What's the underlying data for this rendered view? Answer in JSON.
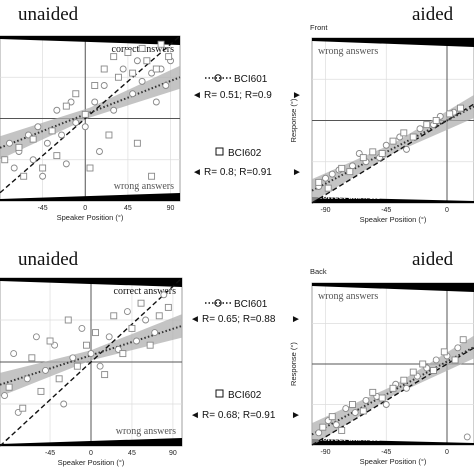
{
  "panel_titles": {
    "unaided": "unaided",
    "aided": "aided"
  },
  "row_labels": {
    "front": "Front",
    "back": "Back"
  },
  "region_labels": {
    "correct": "correct answers",
    "wrong": "wrong answers"
  },
  "legend": {
    "s1": {
      "name": "BCI601",
      "front_stats": "R= 0.51; R=0.9",
      "back_stats": "R= 0.65; R=0.88"
    },
    "s2": {
      "name": "BCI602",
      "front_stats": "R= 0.8; R=0.91",
      "back_stats": "R= 0.68; R=0.91"
    }
  },
  "colors": {
    "region_band": "#000000",
    "ci_band": "#b0b0b0",
    "fit_line": "#555555",
    "marker": "#888888"
  },
  "chart_data": [
    {
      "type": "scatter",
      "id": "front-unaided",
      "title": "unaided",
      "xlabel": "Speaker Position (°)",
      "ylabel": "",
      "xlim": [
        -90,
        100
      ],
      "ylim": [
        -100,
        100
      ],
      "xticks": [
        -45,
        0,
        45,
        90
      ],
      "grid": true,
      "diagonal": true,
      "fit": {
        "slope": 0.45,
        "intercept": 5
      },
      "series": [
        {
          "name": "BCI601",
          "marker": "circle",
          "points": [
            [
              -80,
              -30
            ],
            [
              -70,
              -40
            ],
            [
              -75,
              -60
            ],
            [
              -60,
              -20
            ],
            [
              -55,
              -50
            ],
            [
              -50,
              -10
            ],
            [
              -45,
              -70
            ],
            [
              -40,
              -30
            ],
            [
              -30,
              10
            ],
            [
              -25,
              -20
            ],
            [
              -20,
              -55
            ],
            [
              -15,
              20
            ],
            [
              -10,
              -5
            ],
            [
              0,
              -10
            ],
            [
              10,
              20
            ],
            [
              15,
              -40
            ],
            [
              20,
              40
            ],
            [
              30,
              10
            ],
            [
              40,
              60
            ],
            [
              50,
              30
            ],
            [
              55,
              70
            ],
            [
              60,
              45
            ],
            [
              70,
              55
            ],
            [
              75,
              20
            ],
            [
              80,
              60
            ],
            [
              85,
              40
            ],
            [
              90,
              70
            ]
          ]
        },
        {
          "name": "BCI602",
          "marker": "square",
          "points": [
            [
              -85,
              -50
            ],
            [
              -70,
              -35
            ],
            [
              -65,
              -70
            ],
            [
              -55,
              -25
            ],
            [
              -45,
              -60
            ],
            [
              -35,
              -15
            ],
            [
              -30,
              -45
            ],
            [
              -20,
              15
            ],
            [
              -10,
              30
            ],
            [
              0,
              5
            ],
            [
              5,
              -60
            ],
            [
              10,
              40
            ],
            [
              20,
              60
            ],
            [
              25,
              -20
            ],
            [
              30,
              75
            ],
            [
              35,
              50
            ],
            [
              45,
              80
            ],
            [
              50,
              55
            ],
            [
              55,
              -30
            ],
            [
              60,
              85
            ],
            [
              65,
              70
            ],
            [
              70,
              -70
            ],
            [
              75,
              60
            ],
            [
              80,
              90
            ],
            [
              88,
              75
            ]
          ]
        }
      ]
    },
    {
      "type": "scatter",
      "id": "front-aided",
      "title": "aided",
      "xlabel": "Speaker Position (°)",
      "ylabel": "Response (°)",
      "xlim": [
        -100,
        20
      ],
      "ylim": [
        -100,
        100
      ],
      "xticks": [
        -90,
        -45,
        0
      ],
      "grid": true,
      "diagonal": true,
      "fit": {
        "slope": 0.85,
        "intercept": 0
      },
      "series": [
        {
          "name": "BCI601",
          "marker": "circle",
          "points": [
            [
              -95,
              -80
            ],
            [
              -90,
              -70
            ],
            [
              -85,
              -65
            ],
            [
              -80,
              -60
            ],
            [
              -70,
              -55
            ],
            [
              -65,
              -40
            ],
            [
              -60,
              -50
            ],
            [
              -50,
              -45
            ],
            [
              -45,
              -30
            ],
            [
              -35,
              -20
            ],
            [
              -30,
              -35
            ],
            [
              -20,
              -10
            ],
            [
              -10,
              -5
            ],
            [
              -5,
              5
            ],
            [
              5,
              10
            ]
          ]
        },
        {
          "name": "BCI602",
          "marker": "square",
          "points": [
            [
              -95,
              -75
            ],
            [
              -88,
              -82
            ],
            [
              -78,
              -58
            ],
            [
              -72,
              -62
            ],
            [
              -62,
              -45
            ],
            [
              -55,
              -38
            ],
            [
              -48,
              -40
            ],
            [
              -40,
              -25
            ],
            [
              -32,
              -15
            ],
            [
              -25,
              -20
            ],
            [
              -15,
              -5
            ],
            [
              -8,
              0
            ],
            [
              2,
              8
            ],
            [
              10,
              15
            ]
          ]
        }
      ]
    },
    {
      "type": "scatter",
      "id": "back-unaided",
      "title": "unaided",
      "xlabel": "Speaker Position (°)",
      "ylabel": "",
      "xlim": [
        -100,
        100
      ],
      "ylim": [
        -100,
        100
      ],
      "xticks": [
        -45,
        0,
        45,
        90
      ],
      "grid": true,
      "diagonal": true,
      "fit": {
        "slope": 0.35,
        "intercept": 8
      },
      "series": [
        {
          "name": "BCI601",
          "marker": "circle",
          "points": [
            [
              -95,
              -40
            ],
            [
              -85,
              10
            ],
            [
              -80,
              -60
            ],
            [
              -70,
              -20
            ],
            [
              -60,
              30
            ],
            [
              -50,
              -10
            ],
            [
              -40,
              20
            ],
            [
              -30,
              -50
            ],
            [
              -20,
              5
            ],
            [
              -10,
              40
            ],
            [
              0,
              10
            ],
            [
              10,
              -5
            ],
            [
              20,
              30
            ],
            [
              30,
              15
            ],
            [
              40,
              60
            ],
            [
              50,
              25
            ],
            [
              60,
              50
            ],
            [
              70,
              35
            ],
            [
              80,
              80
            ]
          ]
        },
        {
          "name": "BCI602",
          "marker": "square",
          "points": [
            [
              -90,
              -30
            ],
            [
              -75,
              -55
            ],
            [
              -65,
              5
            ],
            [
              -55,
              -35
            ],
            [
              -45,
              25
            ],
            [
              -35,
              -20
            ],
            [
              -25,
              50
            ],
            [
              -15,
              -5
            ],
            [
              -5,
              20
            ],
            [
              5,
              35
            ],
            [
              15,
              -15
            ],
            [
              25,
              55
            ],
            [
              35,
              10
            ],
            [
              45,
              40
            ],
            [
              55,
              70
            ],
            [
              65,
              20
            ],
            [
              75,
              55
            ],
            [
              85,
              65
            ]
          ]
        }
      ]
    },
    {
      "type": "scatter",
      "id": "back-aided",
      "title": "aided",
      "xlabel": "Speaker Position (°)",
      "ylabel": "Response (°)",
      "xlim": [
        -100,
        20
      ],
      "ylim": [
        -100,
        100
      ],
      "xticks": [
        -90,
        -45,
        0
      ],
      "grid": true,
      "diagonal": true,
      "fit": {
        "slope": 0.9,
        "intercept": 3
      },
      "series": [
        {
          "name": "BCI601",
          "marker": "circle",
          "points": [
            [
              -95,
              -85
            ],
            [
              -88,
              -70
            ],
            [
              -82,
              -75
            ],
            [
              -75,
              -55
            ],
            [
              -68,
              -60
            ],
            [
              -60,
              -45
            ],
            [
              -52,
              -40
            ],
            [
              -45,
              -50
            ],
            [
              -38,
              -25
            ],
            [
              -30,
              -30
            ],
            [
              -22,
              -15
            ],
            [
              -15,
              -5
            ],
            [
              -8,
              5
            ],
            [
              0,
              10
            ],
            [
              8,
              20
            ],
            [
              15,
              -90
            ]
          ]
        },
        {
          "name": "BCI602",
          "marker": "square",
          "points": [
            [
              -92,
              -78
            ],
            [
              -85,
              -65
            ],
            [
              -78,
              -82
            ],
            [
              -70,
              -50
            ],
            [
              -62,
              -58
            ],
            [
              -55,
              -35
            ],
            [
              -48,
              -42
            ],
            [
              -40,
              -30
            ],
            [
              -32,
              -20
            ],
            [
              -25,
              -10
            ],
            [
              -18,
              0
            ],
            [
              -10,
              -8
            ],
            [
              -2,
              15
            ],
            [
              6,
              5
            ],
            [
              12,
              30
            ]
          ]
        }
      ]
    }
  ]
}
